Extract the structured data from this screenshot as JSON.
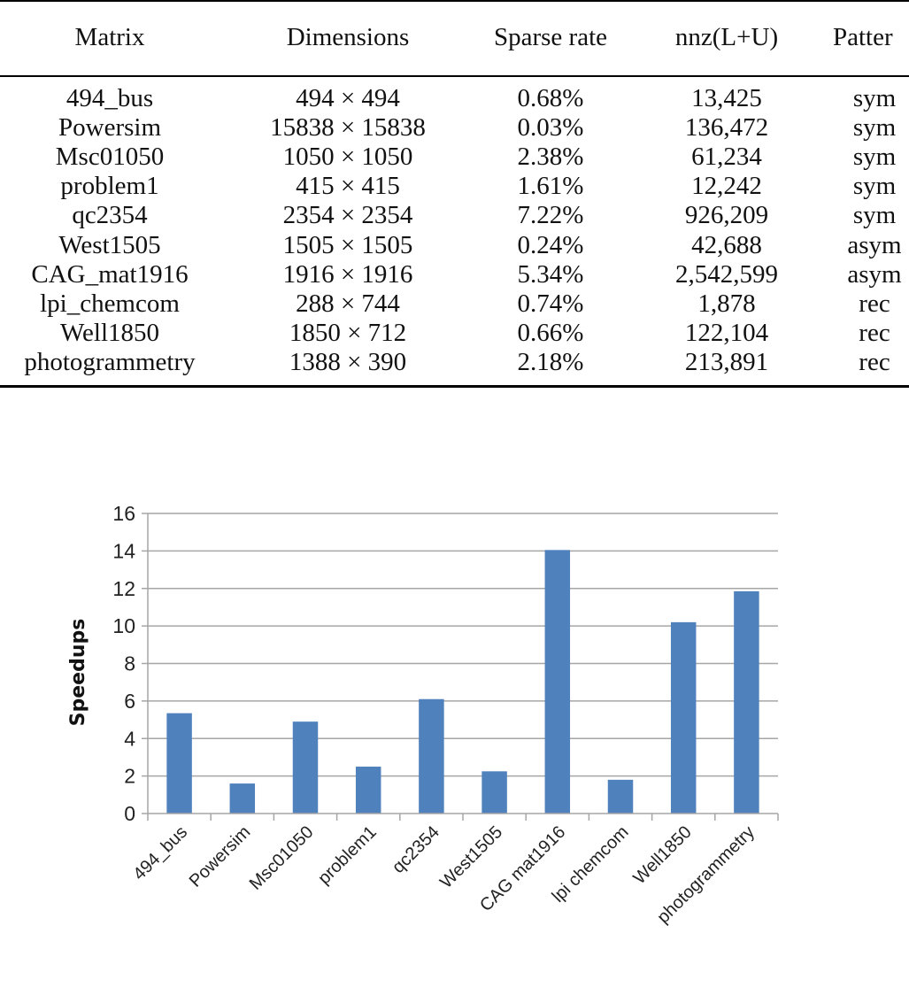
{
  "table": {
    "headers": [
      "Matrix",
      "Dimensions",
      "Sparse rate",
      "nnz(L+U)",
      "Patter"
    ],
    "rows": [
      [
        "494_bus",
        "494 × 494",
        "0.68%",
        "13,425",
        "sym"
      ],
      [
        "Powersim",
        "15838 × 15838",
        "0.03%",
        "136,472",
        "sym"
      ],
      [
        "Msc01050",
        "1050 × 1050",
        "2.38%",
        "61,234",
        "sym"
      ],
      [
        "problem1",
        "415 × 415",
        "1.61%",
        "12,242",
        "sym"
      ],
      [
        "qc2354",
        "2354 × 2354",
        "7.22%",
        "926,209",
        "sym"
      ],
      [
        "West1505",
        "1505 × 1505",
        "0.24%",
        "42,688",
        "asym"
      ],
      [
        "CAG_mat1916",
        "1916 × 1916",
        "5.34%",
        "2,542,599",
        "asym"
      ],
      [
        "lpi_chemcom",
        "288 × 744",
        "0.74%",
        "1,878",
        "rec"
      ],
      [
        "Well1850",
        "1850 × 712",
        "0.66%",
        "122,104",
        "rec"
      ],
      [
        "photogrammetry",
        "1388 × 390",
        "2.18%",
        "213,891",
        "rec"
      ]
    ]
  },
  "chart_data": {
    "type": "bar",
    "title": "",
    "xlabel": "",
    "ylabel": "Speedups",
    "ylim": [
      0,
      16
    ],
    "yticks": [
      "0",
      "2",
      "4",
      "6",
      "8",
      "10",
      "12",
      "14",
      "16"
    ],
    "grid": true,
    "categories": [
      "494_bus",
      "Powersim",
      "Msc01050",
      "problem1",
      "qc2354",
      "West1505",
      "CAG mat1916",
      "lpi chemcom",
      "Well1850",
      "photogrammetry"
    ],
    "values": [
      5.35,
      1.6,
      4.9,
      2.5,
      6.1,
      2.25,
      14.05,
      1.8,
      10.2,
      11.85
    ],
    "bar_color": "#4f81bd",
    "grid_color": "#a6a6a6"
  }
}
